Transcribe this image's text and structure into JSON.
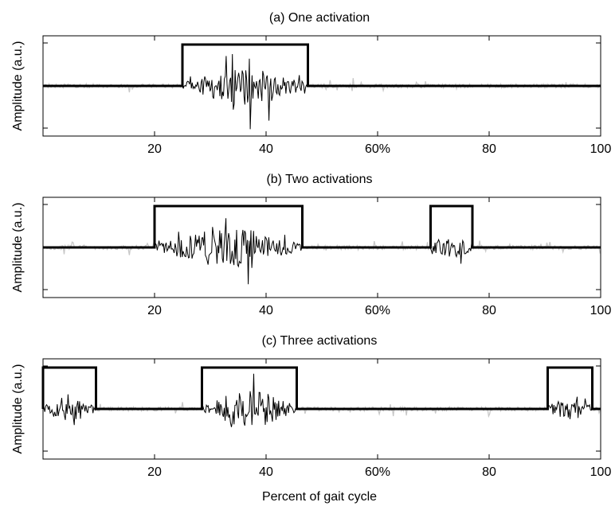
{
  "figure": {
    "xlabel": "Percent of gait cycle"
  },
  "chart_data": [
    {
      "type": "line",
      "title": "(a) One activation",
      "ylabel": "Amplitude (a.u.)",
      "xlim": [
        0,
        100
      ],
      "xticks": [
        20,
        40,
        60,
        80,
        100
      ],
      "xtick_labels": [
        "20",
        "40",
        "60%",
        "80",
        "100"
      ],
      "series": [
        {
          "kind": "on-off",
          "color": "#000000",
          "intervals": [
            [
              25,
              47.5
            ]
          ]
        },
        {
          "kind": "emg",
          "color": "#000000",
          "intervals": [
            [
              25,
              47.5
            ]
          ]
        },
        {
          "kind": "baseline-noise",
          "color": "#c8c8c8"
        }
      ]
    },
    {
      "type": "line",
      "title": "(b) Two activations",
      "ylabel": "Amplitude (a.u.)",
      "xlim": [
        0,
        100
      ],
      "xticks": [
        20,
        40,
        60,
        80,
        100
      ],
      "xtick_labels": [
        "20",
        "40",
        "60%",
        "80",
        "100"
      ],
      "series": [
        {
          "kind": "on-off",
          "color": "#000000",
          "intervals": [
            [
              20,
              46.5
            ],
            [
              69.5,
              77
            ]
          ]
        },
        {
          "kind": "emg",
          "color": "#000000",
          "intervals": [
            [
              20,
              46.5
            ],
            [
              69.5,
              77
            ]
          ]
        },
        {
          "kind": "baseline-noise",
          "color": "#c8c8c8"
        }
      ]
    },
    {
      "type": "line",
      "title": "(c) Three activations",
      "ylabel": "Amplitude (a.u.)",
      "xlim": [
        0,
        100
      ],
      "xticks": [
        20,
        40,
        60,
        80,
        100
      ],
      "xtick_labels": [
        "20",
        "40",
        "60%",
        "80",
        "100"
      ],
      "series": [
        {
          "kind": "on-off",
          "color": "#000000",
          "intervals": [
            [
              0,
              9.5
            ],
            [
              28.5,
              45.5
            ],
            [
              90.5,
              98.5
            ]
          ]
        },
        {
          "kind": "emg",
          "color": "#000000",
          "intervals": [
            [
              0,
              9.5
            ],
            [
              28.5,
              45.5
            ],
            [
              90.5,
              98.5
            ]
          ]
        },
        {
          "kind": "baseline-noise",
          "color": "#c8c8c8"
        }
      ]
    }
  ]
}
